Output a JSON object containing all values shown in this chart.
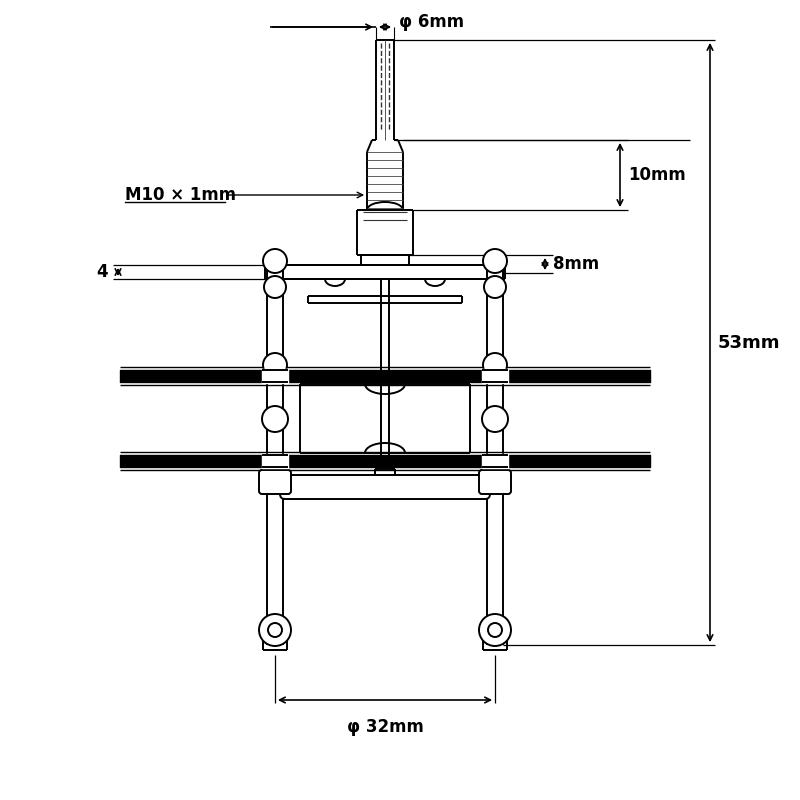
{
  "background_color": "#ffffff",
  "line_color": "#000000",
  "figsize": [
    8.0,
    8.0
  ],
  "dpi": 100,
  "annotations": [
    {
      "text": "φ 6mm",
      "fontsize": 12,
      "bold": true
    },
    {
      "text": "10mm",
      "fontsize": 12,
      "bold": true
    },
    {
      "text": "M10 × 1mm",
      "fontsize": 12,
      "bold": true
    },
    {
      "text": "8mm",
      "fontsize": 12,
      "bold": true
    },
    {
      "text": "4",
      "fontsize": 12,
      "bold": true
    },
    {
      "text": "53mm",
      "fontsize": 13,
      "bold": true
    },
    {
      "text": "φ 32mm",
      "fontsize": 12,
      "bold": true
    }
  ]
}
